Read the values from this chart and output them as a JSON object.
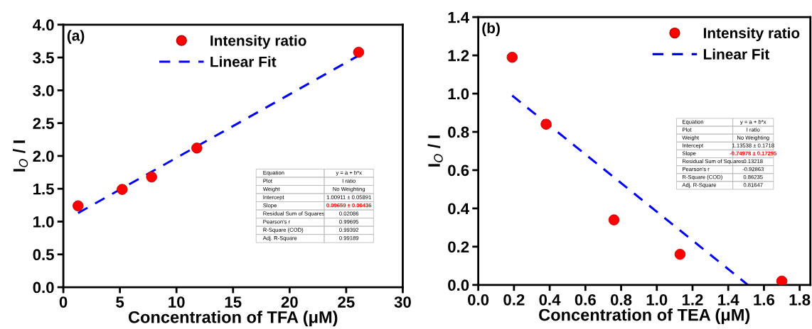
{
  "chart_data": [
    {
      "type": "scatter",
      "xlabel": "Concentration of TFA (μM)",
      "ylabel": "I$_{O}$ / I",
      "xlim": [
        0,
        30
      ],
      "xticks": [
        0,
        5,
        10,
        15,
        20,
        25,
        30
      ],
      "ylim": [
        0,
        4.0
      ],
      "yticks": [
        {
          "value": 0,
          "label": "0.0"
        },
        0.5,
        {
          "value": 1,
          "label": "1.0"
        },
        1.5,
        {
          "value": 2,
          "label": "2.0"
        },
        2.5,
        {
          "value": 3,
          "label": "3.0"
        },
        3.5,
        {
          "value": 4,
          "label": "4.0"
        }
      ],
      "legend": "top",
      "grid": false,
      "series": [
        {
          "name": "Intensity ratio",
          "color": "#ff0000",
          "marker": "circle",
          "x": [
            1.3,
            5.2,
            7.8,
            11.8,
            26.1
          ],
          "values": [
            1.24,
            1.49,
            1.68,
            2.12,
            3.58
          ]
        },
        {
          "name": "Linear Fit",
          "type": "line",
          "color": "#0000ff",
          "marker": "none",
          "line_style": "dashed",
          "x": [
            1.3,
            26.1
          ],
          "values": [
            1.13,
            3.53
          ]
        }
      ],
      "annotations": [
        "(a)",
        "Equation",
        "y = a + b*x",
        "Plot",
        "I ratio",
        "Weight",
        "No Weighting",
        "Intercept",
        "1.00911 ± 0.05891",
        "Slope",
        "0.09659 ± 0.00436",
        "Residual Sum of Squares",
        "0.02086",
        "Pearson's r",
        "0.99695",
        "R-Square (COD)",
        "0.99392",
        "Adj. R-Square",
        "0.99189"
      ]
    },
    {
      "type": "scatter",
      "xlabel": "Concentration of TEA (μM)",
      "ylabel": "I$_{O}$ / I",
      "xlim": [
        0,
        1.86
      ],
      "xticks": [
        {
          "value": 0,
          "label": "0.0"
        },
        0.2,
        0.4,
        0.6,
        0.8,
        {
          "value": 1,
          "label": "1.0"
        },
        1.2,
        1.4,
        1.6,
        1.8
      ],
      "ylim": [
        0,
        1.4
      ],
      "yticks": [
        {
          "value": 0,
          "label": "0.0"
        },
        0.2,
        0.4,
        0.6,
        0.8,
        {
          "value": 1,
          "label": "1.0"
        },
        1.2,
        1.4
      ],
      "legend": "top right",
      "grid": false,
      "series": [
        {
          "name": "Intensity ratio",
          "color": "#ff0000",
          "marker": "circle",
          "x": [
            0.19,
            0.38,
            0.76,
            1.13,
            1.7
          ],
          "values": [
            1.19,
            0.84,
            0.34,
            0.16,
            0.02
          ]
        },
        {
          "name": "Linear Fit",
          "type": "line",
          "color": "#0000ff",
          "marker": "none",
          "line_style": "dashed",
          "x": [
            0.19,
            1.51
          ],
          "values": [
            0.99,
            0.0
          ]
        }
      ],
      "annotations": [
        "(b)",
        "Equation",
        "y = a + b*x",
        "Plot",
        "I ratio",
        "Weight",
        "No Weighting",
        "Intercept",
        "1.13538 ± 0.1718",
        "Slope",
        "-0.74978 ± 0.17295",
        "Residual Sum of Squares",
        "0.13218",
        "Pearson's r",
        "-0.92863",
        "R-Square (COD)",
        "0.86235",
        "Adj. R-Square",
        "0.81647"
      ]
    }
  ]
}
